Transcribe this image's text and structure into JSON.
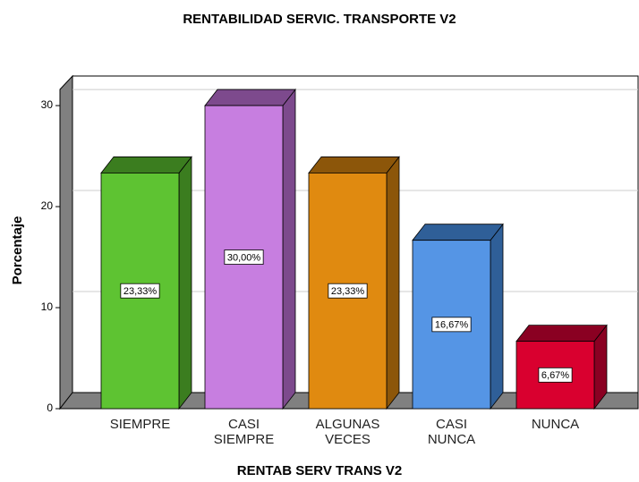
{
  "chart_data": {
    "type": "bar3d",
    "title": "RENTABILIDAD SERVIC. TRANSPORTE V2",
    "x_label": "RENTAB SERV TRANS V2",
    "y_label": "Porcentaje",
    "categories": [
      "SIEMPRE",
      "CASI SIEMPRE",
      "ALGUNAS VECES",
      "CASI NUNCA",
      "NUNCA"
    ],
    "values": [
      23.33,
      30.0,
      23.33,
      16.67,
      6.67
    ],
    "value_labels": [
      "23,33%",
      "30,00%",
      "23,33%",
      "16,67%",
      "6,67%"
    ],
    "colors": [
      "#5ec332",
      "#c77ee0",
      "#e08a10",
      "#5595e5",
      "#d9002f"
    ],
    "side_colors": [
      "#3b7d1f",
      "#7d4a8d",
      "#8c560a",
      "#2f5f98",
      "#8a0022"
    ],
    "ylim": [
      0,
      31.6
    ],
    "yticks": [
      0,
      10,
      20,
      30
    ],
    "grid": true
  }
}
